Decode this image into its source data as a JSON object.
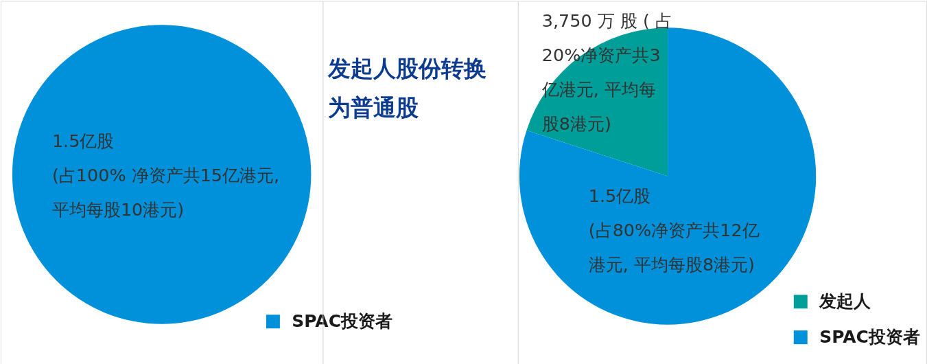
{
  "chart_data": [
    {
      "type": "pie",
      "categories": [
        "SPAC投资者"
      ],
      "values": [
        100
      ],
      "colors": [
        "#0091da"
      ],
      "value_labels": [
        "1.5亿股 (占100% 净资产共15亿港元, 平均每股10港元)"
      ],
      "legend": "bottom right"
    },
    {
      "type": "other",
      "annotations": [
        "发起人股份转换为普通股"
      ]
    },
    {
      "type": "pie",
      "categories": [
        "发起人",
        "SPAC投资者"
      ],
      "values": [
        20,
        80
      ],
      "colors": [
        "#009e99",
        "#0091da"
      ],
      "value_labels": [
        "3,750 万 股 ( 占 20%净资产共3 亿港元, 平均每股8港元)",
        "1.5亿股 (占80%净资产共12亿港元, 平均每股8港元)"
      ],
      "legend": "bottom right"
    }
  ]
}
